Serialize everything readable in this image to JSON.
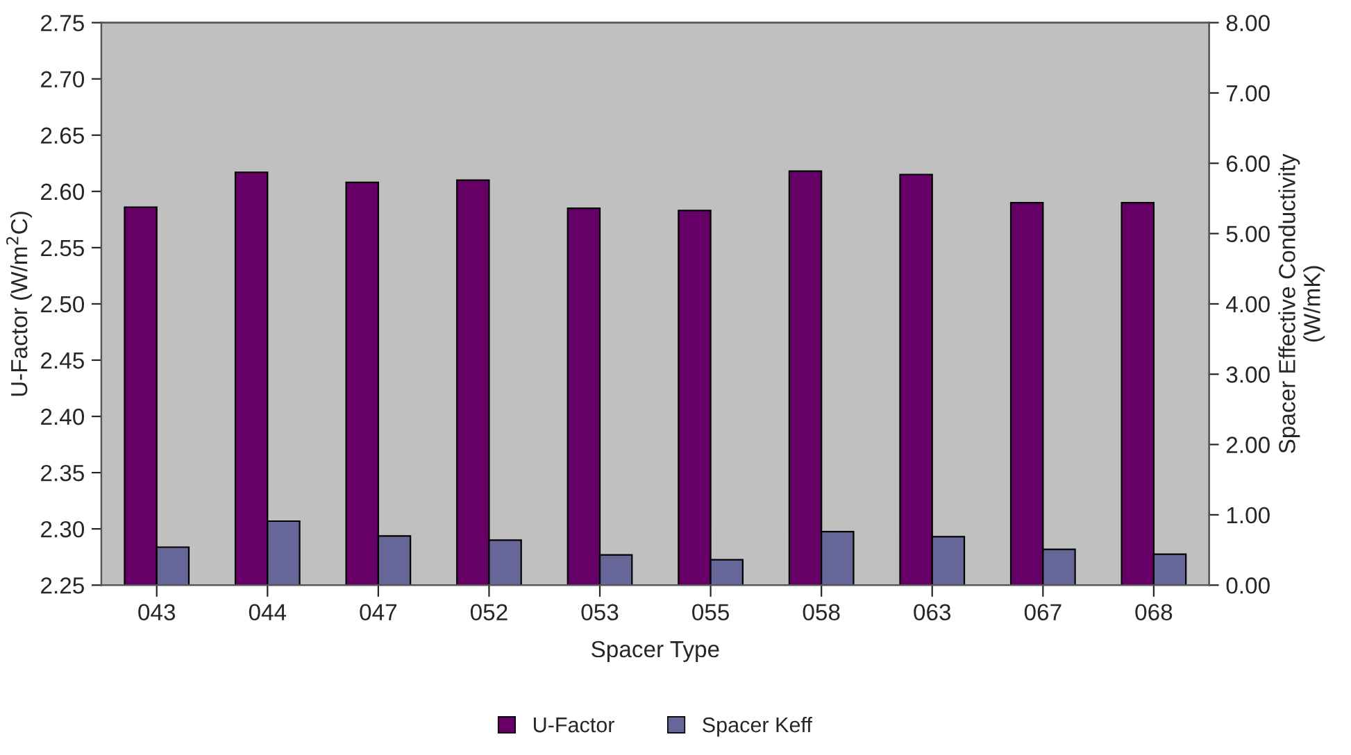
{
  "chart_data": {
    "type": "bar",
    "xlabel": "Spacer Type",
    "ylabel": "U-Factor (W/m$^{2}$C)",
    "y2label": "Spacer Effective Conductivity\n(W/mK)",
    "categories": [
      "043",
      "044",
      "047",
      "052",
      "053",
      "055",
      "058",
      "063",
      "067",
      "068"
    ],
    "series": [
      {
        "name": "U-Factor",
        "color": "#660066",
        "values": [
          2.586,
          2.617,
          2.608,
          2.61,
          2.585,
          2.583,
          2.618,
          2.615,
          2.59,
          2.59
        ]
      },
      {
        "name": "Spacer Keff",
        "color": "#666699",
        "axis": "y2",
        "values": [
          0.54,
          0.91,
          0.7,
          0.64,
          0.43,
          0.36,
          0.76,
          0.69,
          0.51,
          0.44
        ]
      }
    ],
    "ylim": [
      2.25,
      2.75
    ],
    "yticks": [
      {
        "value": 2.25,
        "label": "2.25"
      },
      {
        "value": 2.3,
        "label": "2.30"
      },
      {
        "value": 2.35,
        "label": "2.35"
      },
      {
        "value": 2.4,
        "label": "2.40"
      },
      {
        "value": 2.45,
        "label": "2.45"
      },
      {
        "value": 2.5,
        "label": "2.50"
      },
      {
        "value": 2.55,
        "label": "2.55"
      },
      {
        "value": 2.6,
        "label": "2.60"
      },
      {
        "value": 2.65,
        "label": "2.65"
      },
      {
        "value": 2.7,
        "label": "2.70"
      },
      {
        "value": 2.75,
        "label": "2.75"
      }
    ],
    "y2lim": [
      0,
      8
    ],
    "y2ticks": [
      {
        "value": 0,
        "label": "0.00"
      },
      {
        "value": 1,
        "label": "1.00"
      },
      {
        "value": 2,
        "label": "2.00"
      },
      {
        "value": 3,
        "label": "3.00"
      },
      {
        "value": 4,
        "label": "4.00"
      },
      {
        "value": 5,
        "label": "5.00"
      },
      {
        "value": 6,
        "label": "6.00"
      },
      {
        "value": 7,
        "label": "7.00"
      },
      {
        "value": 8,
        "label": "8.00"
      }
    ],
    "grid": false,
    "legend": "bottom"
  }
}
